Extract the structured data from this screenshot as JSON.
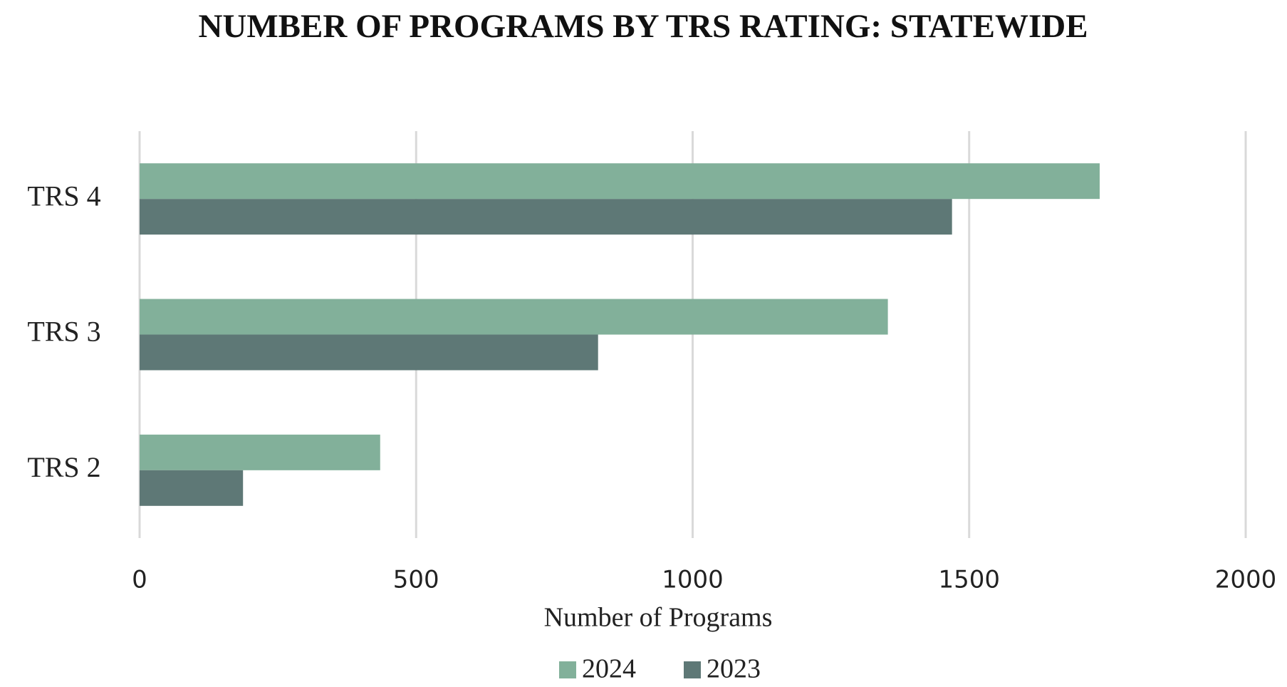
{
  "chart_data": {
    "type": "hbar",
    "title": "NUMBER OF PROGRAMS BY TRS RATING: STATEWIDE",
    "x_label": "Number of Programs",
    "categories": [
      "TRS 2",
      "TRS 3",
      "TRS 4"
    ],
    "series": [
      {
        "name": "2024",
        "color": "#82b09a",
        "values": [
          435,
          1353,
          1736
        ]
      },
      {
        "name": "2023",
        "color": "#5e7876",
        "values": [
          187,
          829,
          1469
        ]
      }
    ],
    "xlim": [
      0,
      2000
    ],
    "xticks": [
      0,
      500,
      1000,
      1500,
      2000
    ],
    "grid": true,
    "legend": "bottom"
  }
}
